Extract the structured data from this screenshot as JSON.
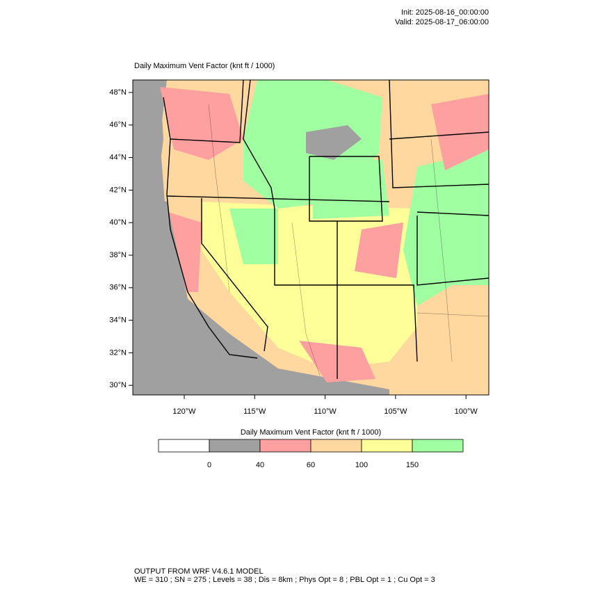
{
  "header": {
    "init": "Init: 2025-08-16_00:00:00",
    "valid": "Valid: 2025-08-17_06:00:00"
  },
  "map": {
    "title": "Daily Maximum Vent Factor   (knt ft / 1000)",
    "lat_labels": [
      "48°N",
      "46°N",
      "44°N",
      "42°N",
      "40°N",
      "38°N",
      "36°N",
      "34°N",
      "32°N",
      "30°N"
    ],
    "lon_labels": [
      "120°W",
      "115°W",
      "110°W",
      "105°W",
      "100°W"
    ]
  },
  "colorbar": {
    "title": "Daily Maximum Vent Factor  (knt ft / 1000)",
    "colors": [
      "#ffffff",
      "#a0a0a0",
      "#ffa0a0",
      "#ffd8a0",
      "#ffff99",
      "#a0ffa0"
    ],
    "labels": [
      "0",
      "40",
      "60",
      "100",
      "150"
    ]
  },
  "footer": {
    "line1": "OUTPUT FROM WRF V4.6.1 MODEL",
    "line2": "WE = 310 ; SN = 275 ; Levels = 38 ; Dis = 8km ; Phys Opt = 8 ; PBL Opt = 1 ; Cu Opt = 3"
  }
}
